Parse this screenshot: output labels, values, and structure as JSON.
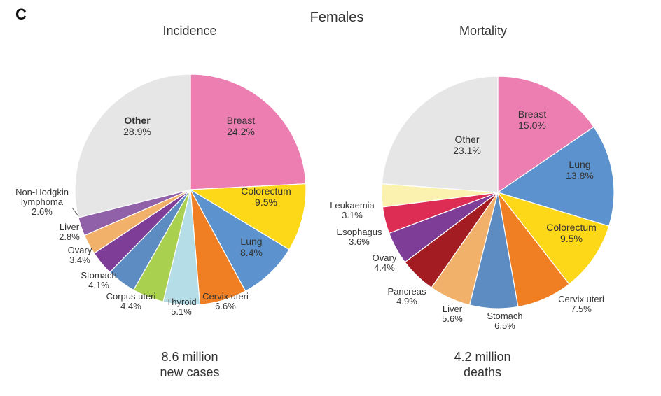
{
  "panel_letter": "C",
  "title": "Females",
  "chart_data": [
    {
      "type": "pie",
      "title": "Incidence",
      "footer_line1": "8.6 million",
      "footer_line2": "new cases",
      "slices": [
        {
          "name": "Breast",
          "value": 24.2,
          "value_label": "24.2%",
          "color": "#EC7EB2"
        },
        {
          "name": "Colorectum",
          "value": 9.5,
          "value_label": "9.5%",
          "color": "#FDD818"
        },
        {
          "name": "Lung",
          "value": 8.4,
          "value_label": "8.4%",
          "color": "#5C93CE"
        },
        {
          "name": "Cervix uteri",
          "value": 6.6,
          "value_label": "6.6%",
          "color": "#F07F24"
        },
        {
          "name": "Thyroid",
          "value": 5.1,
          "value_label": "5.1%",
          "color": "#B5DDE8"
        },
        {
          "name": "Corpus uteri",
          "value": 4.4,
          "value_label": "4.4%",
          "color": "#A9D14F"
        },
        {
          "name": "Stomach",
          "value": 4.1,
          "value_label": "4.1%",
          "color": "#5D8CC2"
        },
        {
          "name": "Ovary",
          "value": 3.4,
          "value_label": "3.4%",
          "color": "#7E3E98"
        },
        {
          "name": "Liver",
          "value": 2.8,
          "value_label": "2.8%",
          "color": "#F2B16A"
        },
        {
          "name": "Non-Hodgkin lymphoma",
          "value": 2.6,
          "value_label": "2.6%",
          "color": "#9060A9"
        },
        {
          "name": "Other",
          "value": 28.9,
          "value_label": "28.9%",
          "color": "#E6E6E6"
        }
      ]
    },
    {
      "type": "pie",
      "title": "Mortality",
      "footer_line1": "4.2 million",
      "footer_line2": "deaths",
      "slices": [
        {
          "name": "Breast",
          "value": 15.0,
          "value_label": "15.0%",
          "color": "#EC7EB2"
        },
        {
          "name": "Lung",
          "value": 13.8,
          "value_label": "13.8%",
          "color": "#5C93CE"
        },
        {
          "name": "Colorectum",
          "value": 9.5,
          "value_label": "9.5%",
          "color": "#FDD818"
        },
        {
          "name": "Cervix uteri",
          "value": 7.5,
          "value_label": "7.5%",
          "color": "#F07F24"
        },
        {
          "name": "Stomach",
          "value": 6.5,
          "value_label": "6.5%",
          "color": "#5D8CC2"
        },
        {
          "name": "Liver",
          "value": 5.6,
          "value_label": "5.6%",
          "color": "#F2B16A"
        },
        {
          "name": "Pancreas",
          "value": 4.9,
          "value_label": "4.9%",
          "color": "#A21C22"
        },
        {
          "name": "Ovary",
          "value": 4.4,
          "value_label": "4.4%",
          "color": "#7E3E98"
        },
        {
          "name": "Esophagus",
          "value": 3.6,
          "value_label": "3.6%",
          "color": "#DE2D54"
        },
        {
          "name": "Leukaemia",
          "value": 3.1,
          "value_label": "3.1%",
          "color": "#FBF2B0"
        },
        {
          "name": "Other",
          "value": 23.1,
          "value_label": "23.1%",
          "color": "#E6E6E6"
        }
      ]
    }
  ]
}
